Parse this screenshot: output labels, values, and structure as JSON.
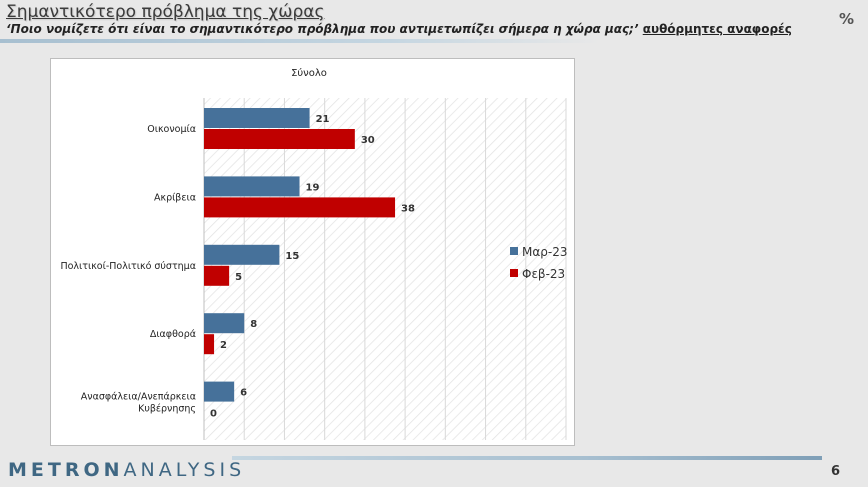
{
  "header": {
    "title": "Σημαντικότερο πρόβλημα της χώρας",
    "subtitle_question": "‘Ποιο νομίζετε ότι  είναι το σημαντικότερο πρόβλημα που αντιμετωπίζει σήμερα η χώρα μας;’",
    "subtitle_note": "αυθόρμητες αναφορές",
    "unit": "%"
  },
  "footer": {
    "logo_bold": "METRON",
    "logo_light": "ANALYSIS",
    "page_number": "6"
  },
  "colors": {
    "mar23": "#46719a",
    "feb23": "#c00000",
    "logo": "#3f6783"
  },
  "chart_data": {
    "type": "bar",
    "orientation": "horizontal",
    "title": "Σύνολο",
    "categories": [
      "Οικονομία",
      "Ακρίβεια",
      "Πολιτικοί-Πολιτικό σύστημα",
      "Διαφθορά",
      "Ανασφάλεια/Ανεπάρκεια Κυβέρνησης"
    ],
    "series": [
      {
        "name": "Μαρ-23",
        "values": [
          21,
          19,
          15,
          8,
          6
        ]
      },
      {
        "name": "Φεβ-23",
        "values": [
          30,
          38,
          5,
          2,
          0
        ]
      }
    ],
    "xlim": [
      0,
      72
    ],
    "legend": "right",
    "grid": true
  }
}
